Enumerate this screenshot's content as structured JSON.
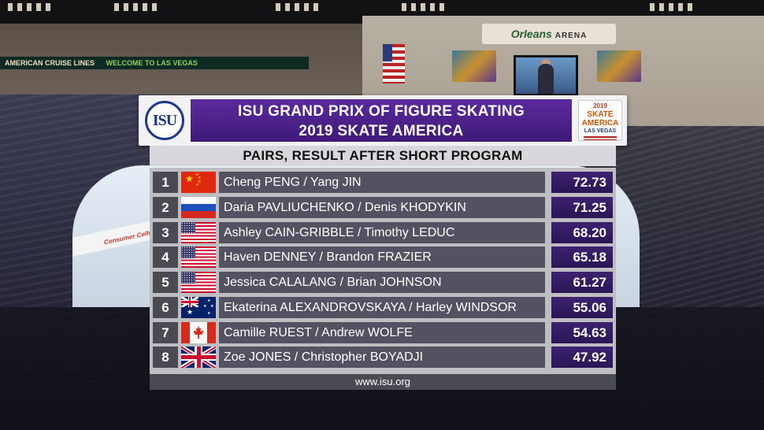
{
  "background": {
    "ribbon_left": "AMERICAN CRUISE LINES",
    "ribbon_right": "WELCOME TO LAS VEGAS",
    "arena_sign_brand": "Orleans",
    "arena_sign_word": "ARENA",
    "boards_text": "Consumer Cellular"
  },
  "header": {
    "logo_text": "ISU",
    "title_line1": "ISU GRAND PRIX OF FIGURE SKATING",
    "title_line2": "2019 SKATE AMERICA",
    "event_logo_year": "2019",
    "event_logo_name": "SKATE AMERICA",
    "event_logo_city": "LAS VEGAS"
  },
  "subtitle": "PAIRS, RESULT AFTER SHORT PROGRAM",
  "results": [
    {
      "rank": "1",
      "names": "Cheng PENG / Yang JIN",
      "score": "72.73",
      "flag": "china-flag-icon"
    },
    {
      "rank": "2",
      "names": "Daria PAVLIUCHENKO / Denis KHODYKIN",
      "score": "71.25",
      "flag": "russia-flag-icon"
    },
    {
      "rank": "3",
      "names": "Ashley CAIN-GRIBBLE / Timothy LEDUC",
      "score": "68.20",
      "flag": "usa-flag-icon"
    },
    {
      "rank": "4",
      "names": "Haven DENNEY / Brandon FRAZIER",
      "score": "65.18",
      "flag": "usa-flag-icon"
    },
    {
      "rank": "5",
      "names": "Jessica CALALANG / Brian JOHNSON",
      "score": "61.27",
      "flag": "usa-flag-icon"
    },
    {
      "rank": "6",
      "names": "Ekaterina ALEXANDROVSKAYA / Harley WINDSOR",
      "score": "55.06",
      "flag": "australia-flag-icon"
    },
    {
      "rank": "7",
      "names": "Camille RUEST / Andrew WOLFE",
      "score": "54.63",
      "flag": "canada-flag-icon"
    },
    {
      "rank": "8",
      "names": "Zoe JONES / Christopher BOYADJI",
      "score": "47.92",
      "flag": "uk-flag-icon"
    }
  ],
  "footer": "www.isu.org",
  "colors": {
    "title_purple": "#4b2189",
    "score_purple": "#331c63",
    "row_gray": "#525260"
  }
}
